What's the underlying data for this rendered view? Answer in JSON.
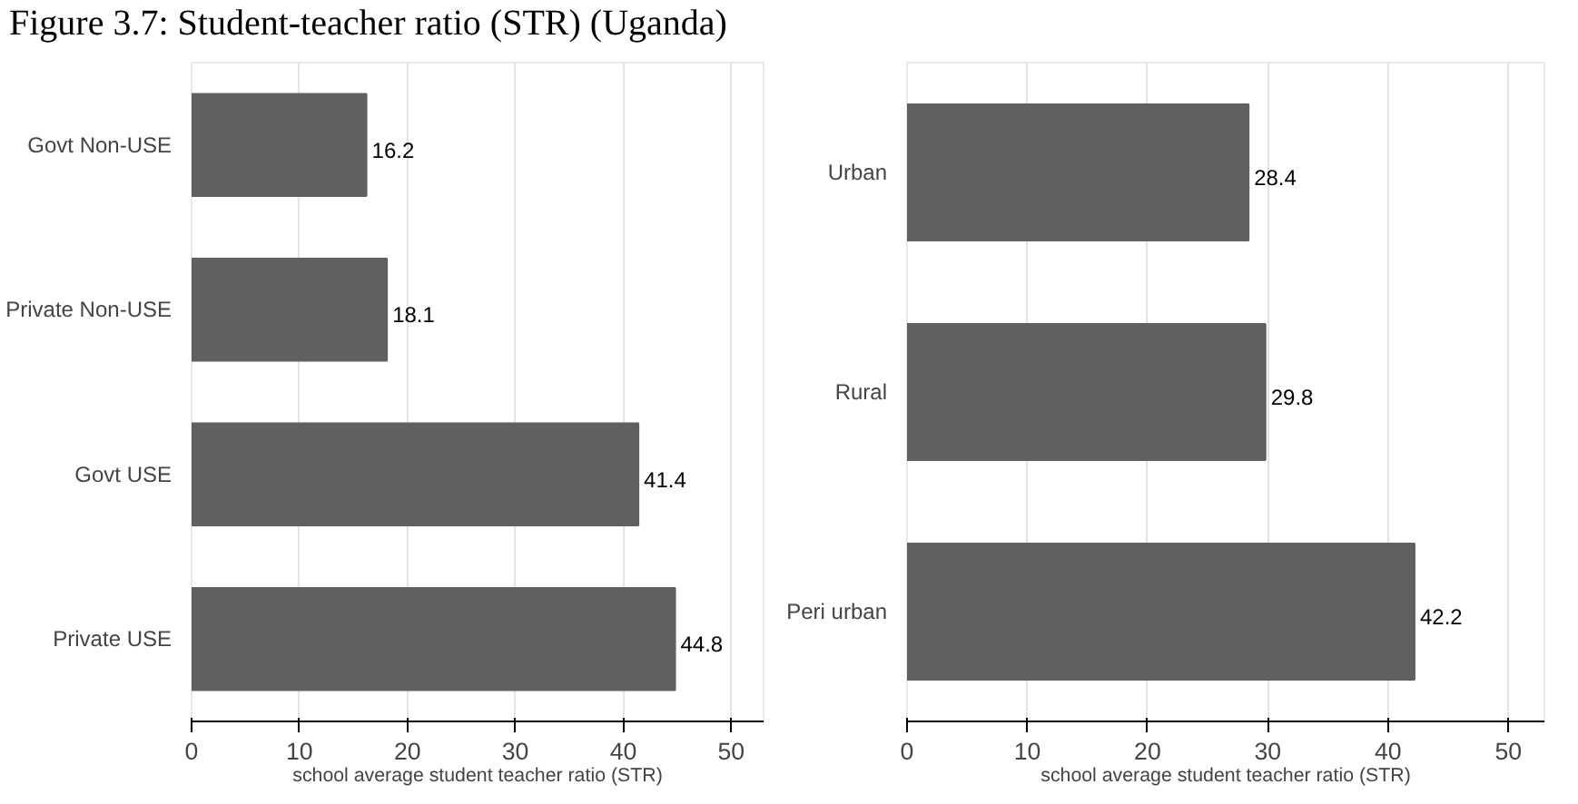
{
  "chart_data": [
    {
      "type": "bar",
      "orientation": "horizontal",
      "title": "Figure 3.7: Student-teacher ratio (STR) (Uganda)",
      "categories": [
        "Govt Non-USE",
        "Private Non-USE",
        "Govt USE",
        "Private USE"
      ],
      "values": [
        16.2,
        18.1,
        41.4,
        44.8
      ],
      "color": "#606060",
      "xlim": [
        0,
        53
      ],
      "xticks": [
        0,
        10,
        20,
        30,
        40,
        50
      ],
      "xlabel": "school average student teacher ratio (STR)",
      "data_labels": true,
      "grid": "x"
    },
    {
      "type": "bar",
      "orientation": "horizontal",
      "categories": [
        "Urban",
        "Rural",
        "Peri urban"
      ],
      "values": [
        28.4,
        29.8,
        42.2
      ],
      "color": "#606060",
      "xlim": [
        0,
        53
      ],
      "xticks": [
        0,
        10,
        20,
        30,
        40,
        50
      ],
      "xlabel": "school average student teacher ratio (STR)",
      "data_labels": true,
      "grid": "x"
    }
  ]
}
